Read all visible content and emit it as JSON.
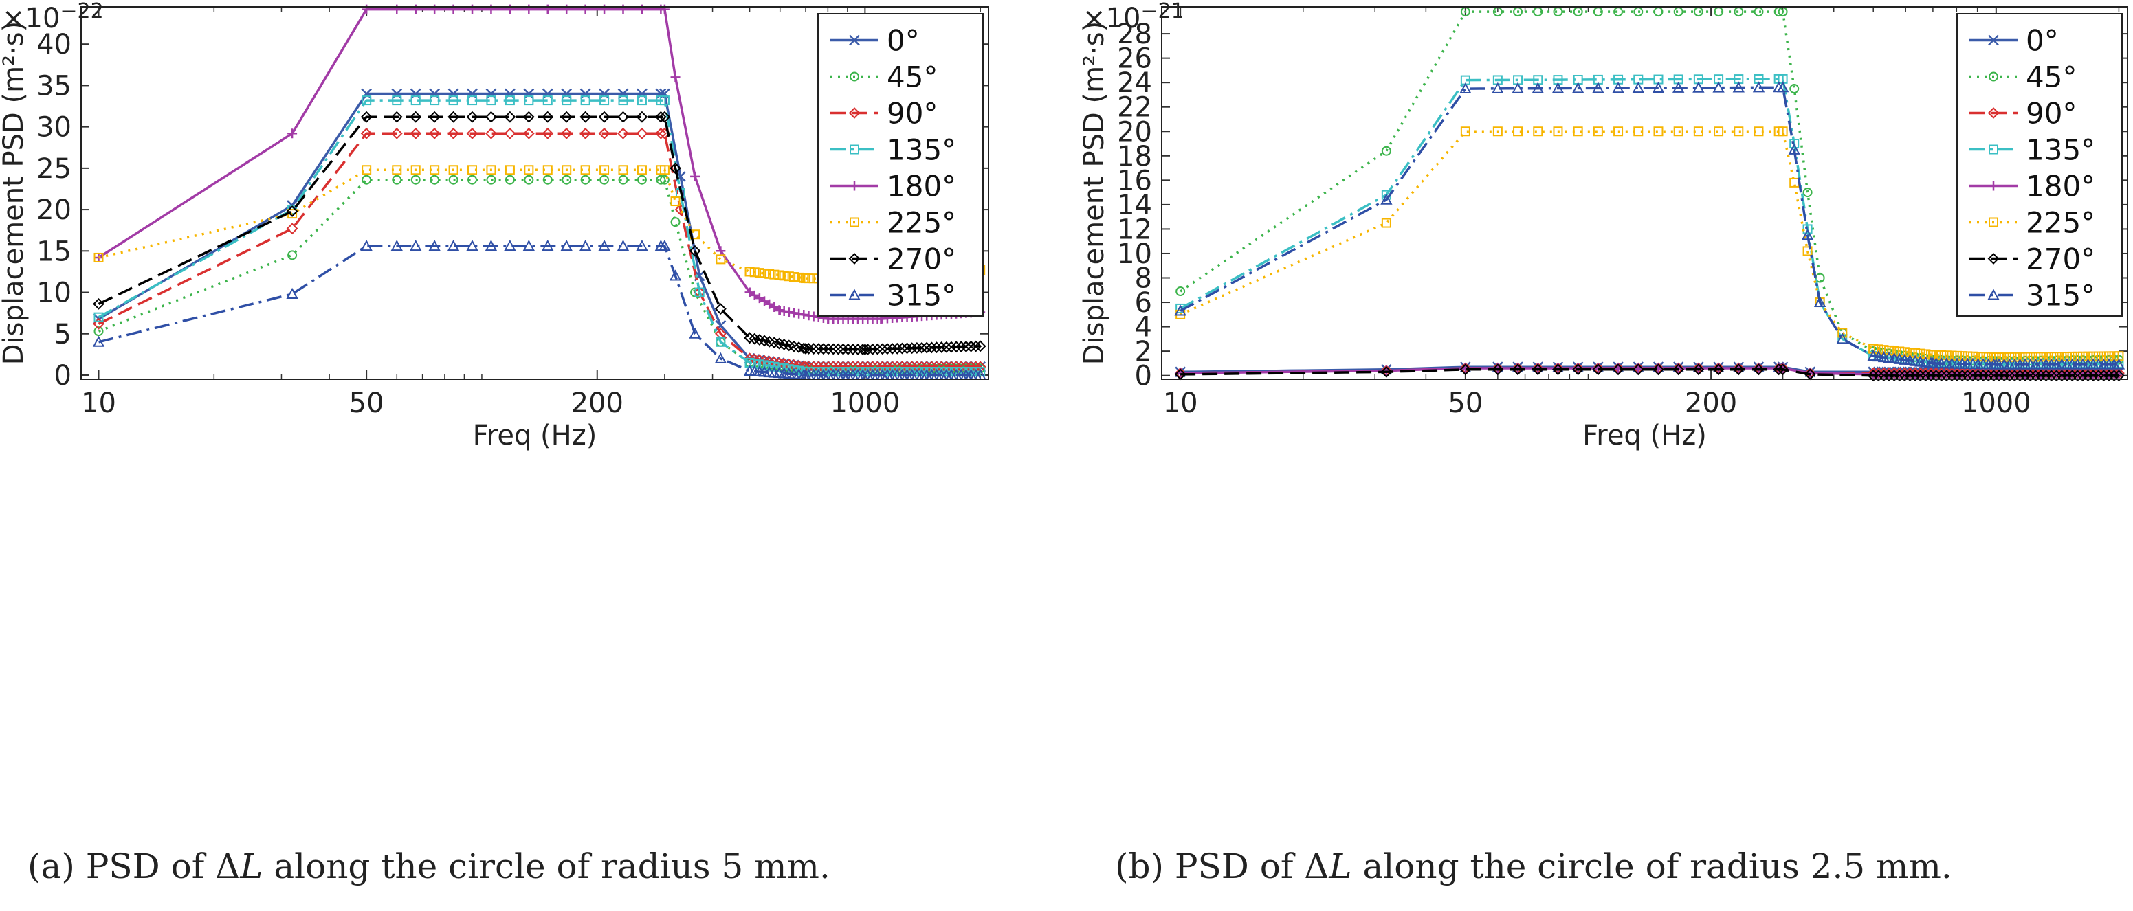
{
  "chart_data": [
    {
      "type": "line",
      "exponent_label": "×10",
      "exponent_power": "−22",
      "xlabel": "Freq (Hz)",
      "ylabel": "Displacement PSD  (m²·s)",
      "xscale": "log",
      "xlim": [
        9,
        2100
      ],
      "ylim": [
        -0.5,
        44.5
      ],
      "x_ticks": [
        10,
        50,
        200,
        1000
      ],
      "x_tick_labels": [
        "10",
        "50",
        "200",
        "1000"
      ],
      "y_ticks": [
        0,
        5,
        10,
        15,
        20,
        25,
        30,
        35,
        40
      ],
      "y_tick_labels": [
        "0",
        "5",
        "10",
        "15",
        "20",
        "25",
        "30",
        "35",
        "40"
      ],
      "legend_position": "top-right",
      "grid": false,
      "caption_prefix": "(a)  PSD of Δ",
      "caption_var": "L",
      "caption_suffix": " along the circle of radius 5 mm.",
      "series": [
        {
          "name": "0°",
          "color": "#3B5BA9",
          "dash": "solid",
          "marker": "x",
          "points": [
            [
              10,
              6.8
            ],
            [
              32,
              20.5
            ],
            [
              50,
              34
            ],
            [
              300,
              34
            ],
            [
              330,
              24
            ],
            [
              370,
              12
            ],
            [
              420,
              6
            ],
            [
              500,
              2
            ],
            [
              700,
              1
            ],
            [
              2000,
              1
            ]
          ]
        },
        {
          "name": "45°",
          "color": "#3CB44B",
          "dash": "dot",
          "marker": "circle",
          "points": [
            [
              10,
              5.3
            ],
            [
              32,
              14.5
            ],
            [
              50,
              23.6
            ],
            [
              300,
              23.6
            ],
            [
              320,
              18.5
            ],
            [
              360,
              10
            ],
            [
              420,
              4
            ],
            [
              500,
              1.5
            ],
            [
              700,
              0.6
            ],
            [
              2000,
              0.8
            ]
          ]
        },
        {
          "name": "90°",
          "color": "#D93030",
          "dash": "dash",
          "marker": "diamond",
          "points": [
            [
              10,
              6.2
            ],
            [
              32,
              17.7
            ],
            [
              50,
              29.2
            ],
            [
              300,
              29.2
            ],
            [
              330,
              20
            ],
            [
              370,
              10
            ],
            [
              420,
              5
            ],
            [
              500,
              2
            ],
            [
              700,
              1
            ],
            [
              2000,
              1
            ]
          ]
        },
        {
          "name": "135°",
          "color": "#3BBFC4",
          "dash": "dashdot",
          "marker": "square",
          "points": [
            [
              10,
              7
            ],
            [
              32,
              20
            ],
            [
              50,
              33.2
            ],
            [
              300,
              33.2
            ],
            [
              330,
              22
            ],
            [
              370,
              10
            ],
            [
              420,
              4
            ],
            [
              500,
              1.5
            ],
            [
              700,
              0.4
            ],
            [
              2000,
              0.4
            ]
          ]
        },
        {
          "name": "180°",
          "color": "#A23BA6",
          "dash": "solid",
          "marker": "plus",
          "points": [
            [
              10,
              14.2
            ],
            [
              32,
              29.2
            ],
            [
              50,
              44.2
            ],
            [
              300,
              44.2
            ],
            [
              320,
              36
            ],
            [
              360,
              24
            ],
            [
              420,
              15
            ],
            [
              500,
              10
            ],
            [
              600,
              7.8
            ],
            [
              800,
              6.8
            ],
            [
              1100,
              6.8
            ],
            [
              2000,
              7.6
            ]
          ]
        },
        {
          "name": "225°",
          "color": "#F7B500",
          "dash": "dot",
          "marker": "square",
          "points": [
            [
              10,
              14.2
            ],
            [
              32,
              19.5
            ],
            [
              50,
              24.8
            ],
            [
              300,
              24.8
            ],
            [
              320,
              21
            ],
            [
              360,
              17
            ],
            [
              420,
              14
            ],
            [
              500,
              12.5
            ],
            [
              700,
              11.7
            ],
            [
              1000,
              11.6
            ],
            [
              2000,
              12.7
            ]
          ]
        },
        {
          "name": "270°",
          "color": "#000000",
          "dash": "dash",
          "marker": "diamond",
          "points": [
            [
              10,
              8.6
            ],
            [
              32,
              19.8
            ],
            [
              50,
              31.2
            ],
            [
              300,
              31.2
            ],
            [
              320,
              25
            ],
            [
              360,
              15
            ],
            [
              420,
              8
            ],
            [
              500,
              4.5
            ],
            [
              700,
              3.2
            ],
            [
              1000,
              3.1
            ],
            [
              2000,
              3.5
            ]
          ]
        },
        {
          "name": "315°",
          "color": "#2F4FA6",
          "dash": "dashdot",
          "marker": "triangle",
          "points": [
            [
              10,
              4
            ],
            [
              32,
              9.8
            ],
            [
              50,
              15.6
            ],
            [
              300,
              15.6
            ],
            [
              320,
              12
            ],
            [
              360,
              5
            ],
            [
              420,
              2
            ],
            [
              500,
              0.5
            ],
            [
              700,
              0
            ],
            [
              2000,
              0
            ]
          ]
        }
      ]
    },
    {
      "type": "line",
      "exponent_label": "×10",
      "exponent_power": "−21",
      "xlabel": "Freq (Hz)",
      "ylabel": "Displacement PSD  (m²·s)",
      "xscale": "log",
      "xlim": [
        9,
        2100
      ],
      "ylim": [
        -0.3,
        30.2
      ],
      "x_ticks": [
        10,
        50,
        200,
        1000
      ],
      "x_tick_labels": [
        "10",
        "50",
        "200",
        "1000"
      ],
      "y_ticks": [
        0,
        2,
        4,
        6,
        8,
        10,
        12,
        14,
        16,
        18,
        20,
        22,
        24,
        26,
        28
      ],
      "y_tick_labels": [
        "0",
        "2",
        "4",
        "6",
        "8",
        "10",
        "12",
        "14",
        "16",
        "18",
        "20",
        "22",
        "24",
        "26",
        "28"
      ],
      "legend_position": "top-right",
      "grid": false,
      "caption_prefix": "(b)  PSD of Δ",
      "caption_var": "L",
      "caption_suffix": " along the circle of radius 2.5 mm.",
      "series": [
        {
          "name": "0°",
          "color": "#3B5BA9",
          "dash": "solid",
          "marker": "x",
          "points": [
            [
              10,
              0.3
            ],
            [
              32,
              0.5
            ],
            [
              50,
              0.7
            ],
            [
              300,
              0.7
            ],
            [
              350,
              0.3
            ],
            [
              500,
              0.3
            ],
            [
              2000,
              0.3
            ]
          ]
        },
        {
          "name": "45°",
          "color": "#3CB44B",
          "dash": "dot",
          "marker": "circle",
          "points": [
            [
              10,
              6.9
            ],
            [
              32,
              18.4
            ],
            [
              50,
              29.8
            ],
            [
              300,
              29.8
            ],
            [
              320,
              23.5
            ],
            [
              345,
              15
            ],
            [
              370,
              8
            ],
            [
              420,
              3.5
            ],
            [
              500,
              2
            ],
            [
              700,
              1.3
            ],
            [
              1000,
              1.2
            ],
            [
              2000,
              1.3
            ]
          ]
        },
        {
          "name": "90°",
          "color": "#D93030",
          "dash": "dash",
          "marker": "diamond",
          "points": [
            [
              10,
              0.2
            ],
            [
              32,
              0.4
            ],
            [
              50,
              0.6
            ],
            [
              300,
              0.6
            ],
            [
              350,
              0.2
            ],
            [
              500,
              0.2
            ],
            [
              2000,
              0.2
            ]
          ]
        },
        {
          "name": "135°",
          "color": "#3BBFC4",
          "dash": "dashdot",
          "marker": "square",
          "points": [
            [
              10,
              5.5
            ],
            [
              32,
              14.8
            ],
            [
              50,
              24.2
            ],
            [
              300,
              24.3
            ],
            [
              320,
              19
            ],
            [
              345,
              12
            ],
            [
              370,
              6
            ],
            [
              420,
              3
            ],
            [
              500,
              1.6
            ],
            [
              700,
              1.1
            ],
            [
              1000,
              1
            ],
            [
              2000,
              1
            ]
          ]
        },
        {
          "name": "180°",
          "color": "#A23BA6",
          "dash": "solid",
          "marker": "plus",
          "points": [
            [
              10,
              0.2
            ],
            [
              32,
              0.4
            ],
            [
              50,
              0.6
            ],
            [
              300,
              0.6
            ],
            [
              350,
              0.2
            ],
            [
              500,
              0.1
            ],
            [
              2000,
              0.1
            ]
          ]
        },
        {
          "name": "225°",
          "color": "#F7B500",
          "dash": "dot",
          "marker": "square",
          "points": [
            [
              10,
              5
            ],
            [
              32,
              12.5
            ],
            [
              50,
              20
            ],
            [
              300,
              20
            ],
            [
              320,
              15.8
            ],
            [
              345,
              10.2
            ],
            [
              370,
              6
            ],
            [
              420,
              3.5
            ],
            [
              500,
              2.2
            ],
            [
              700,
              1.7
            ],
            [
              1000,
              1.5
            ],
            [
              2000,
              1.6
            ]
          ]
        },
        {
          "name": "270°",
          "color": "#000000",
          "dash": "dash",
          "marker": "diamond",
          "points": [
            [
              10,
              0.1
            ],
            [
              32,
              0.3
            ],
            [
              50,
              0.5
            ],
            [
              300,
              0.5
            ],
            [
              350,
              0.1
            ],
            [
              500,
              0
            ],
            [
              2000,
              0
            ]
          ]
        },
        {
          "name": "315°",
          "color": "#2F4FA6",
          "dash": "dashdot",
          "marker": "triangle",
          "points": [
            [
              10,
              5.3
            ],
            [
              32,
              14.4
            ],
            [
              50,
              23.5
            ],
            [
              300,
              23.6
            ],
            [
              320,
              18.5
            ],
            [
              345,
              11.5
            ],
            [
              370,
              6
            ],
            [
              420,
              3
            ],
            [
              500,
              1.6
            ],
            [
              700,
              1
            ],
            [
              1000,
              0.9
            ],
            [
              2000,
              0.9
            ]
          ]
        }
      ]
    }
  ]
}
